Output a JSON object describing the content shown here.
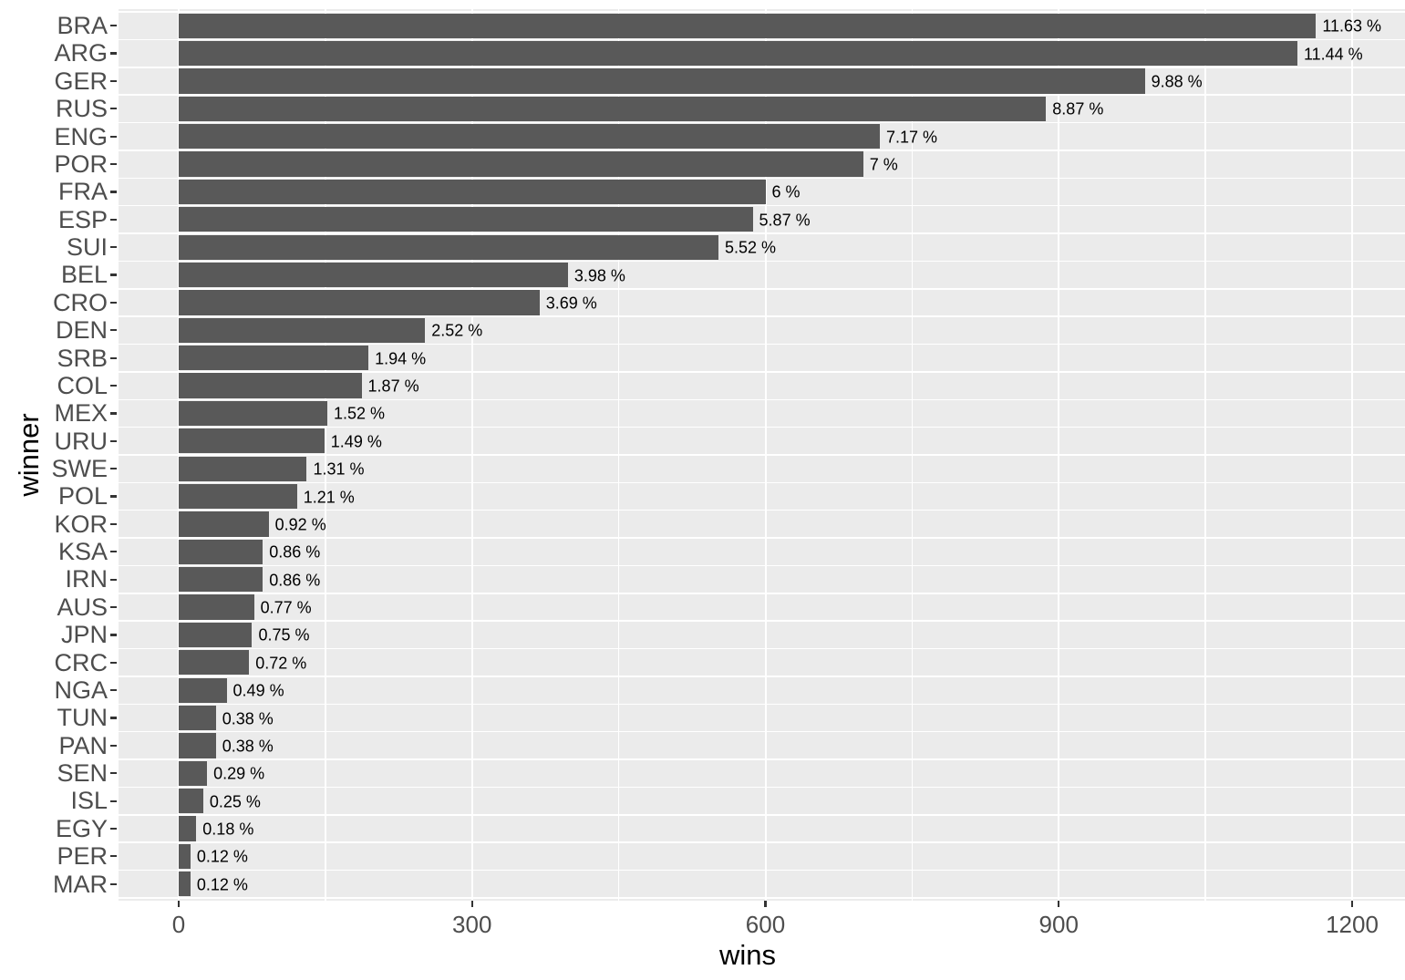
{
  "chart_data": {
    "type": "bar",
    "orientation": "horizontal",
    "title": "",
    "xlabel": "wins",
    "ylabel": "winner",
    "xlim": [
      0,
      1254
    ],
    "x_major_ticks": [
      0,
      300,
      600,
      900,
      1200
    ],
    "x_minor_gridlines": [
      150,
      450,
      750,
      1050
    ],
    "grid": true,
    "legend_position": "none",
    "categories": [
      "BRA",
      "ARG",
      "GER",
      "RUS",
      "ENG",
      "POR",
      "FRA",
      "ESP",
      "SUI",
      "BEL",
      "CRO",
      "DEN",
      "SRB",
      "COL",
      "MEX",
      "URU",
      "SWE",
      "POL",
      "KOR",
      "KSA",
      "IRN",
      "AUS",
      "JPN",
      "CRC",
      "NGA",
      "TUN",
      "PAN",
      "SEN",
      "ISL",
      "EGY",
      "PER",
      "MAR"
    ],
    "values": [
      1163,
      1144,
      988,
      887,
      717,
      700,
      600,
      587,
      552,
      398,
      369,
      252,
      194,
      187,
      152,
      149,
      131,
      121,
      92,
      86,
      86,
      77,
      75,
      72,
      49,
      38,
      38,
      29,
      25,
      18,
      12,
      12
    ],
    "bar_labels": [
      "11.63 %",
      "11.44 %",
      "9.88 %",
      "8.87 %",
      "7.17 %",
      "7 %",
      "6 %",
      "5.87 %",
      "5.52 %",
      "3.98 %",
      "3.69 %",
      "2.52 %",
      "1.94 %",
      "1.87 %",
      "1.52 %",
      "1.49 %",
      "1.31 %",
      "1.21 %",
      "0.92 %",
      "0.86 %",
      "0.86 %",
      "0.77 %",
      "0.75 %",
      "0.72 %",
      "0.49 %",
      "0.38 %",
      "0.38 %",
      "0.29 %",
      "0.25 %",
      "0.18 %",
      "0.12 %",
      "0.12 %"
    ],
    "colors": {
      "bar": "#595959",
      "panel_background": "#EBEBEB",
      "gridline": "#FFFFFF",
      "tick_label": "#4D4D4D",
      "axis_title": "#000000",
      "bar_label": "#000000",
      "tick_mark": "#333333",
      "page_background": "#FFFFFF"
    }
  }
}
